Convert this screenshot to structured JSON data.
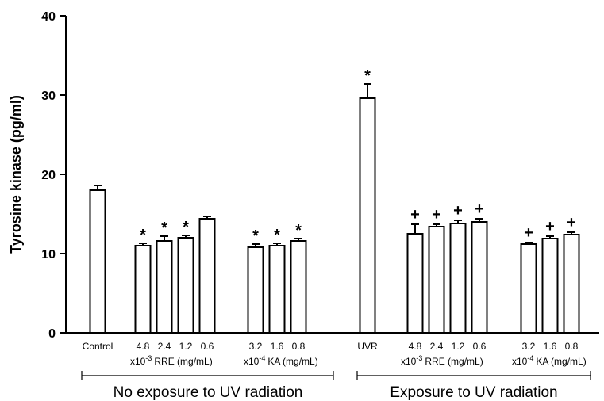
{
  "chart_data": {
    "type": "bar",
    "ylabel": "Tyrosine kinase (pg/ml)",
    "ylim": [
      0,
      40
    ],
    "yticks": [
      0,
      10,
      20,
      30,
      40
    ],
    "grid": false,
    "categories": [
      "Control",
      "4.8",
      "2.4",
      "1.2",
      "0.6",
      "3.2",
      "1.6",
      "0.8",
      "UVR",
      "4.8",
      "2.4",
      "1.2",
      "0.6",
      "3.2",
      "1.6",
      "0.8"
    ],
    "values": [
      18.0,
      11.0,
      11.6,
      12.0,
      14.4,
      10.8,
      11.0,
      11.6,
      29.6,
      12.5,
      13.4,
      13.8,
      14.0,
      11.2,
      11.9,
      12.4
    ],
    "errors": [
      0.6,
      0.3,
      0.6,
      0.3,
      0.3,
      0.4,
      0.3,
      0.3,
      1.8,
      1.2,
      0.3,
      0.4,
      0.4,
      0.2,
      0.3,
      0.3
    ],
    "markers": [
      "",
      "*",
      "*",
      "*",
      "",
      "*",
      "*",
      "*",
      "*",
      "+",
      "+",
      "+",
      "+",
      "+",
      "+",
      "+"
    ],
    "unit_labels": [
      {
        "prefix": "x10",
        "exponent": "-3",
        "text": "RRE (mg/mL)"
      },
      {
        "prefix": "x10",
        "exponent": "-4",
        "text": "KA (mg/mL)"
      },
      {
        "prefix": "x10",
        "exponent": "-3",
        "text": "RRE (mg/mL)"
      },
      {
        "prefix": "x10",
        "exponent": "-4",
        "text": "KA (mg/mL)"
      }
    ],
    "groups": [
      {
        "label": "No exposure to UV radiation"
      },
      {
        "label": "Exposure to UV radiation"
      }
    ]
  }
}
